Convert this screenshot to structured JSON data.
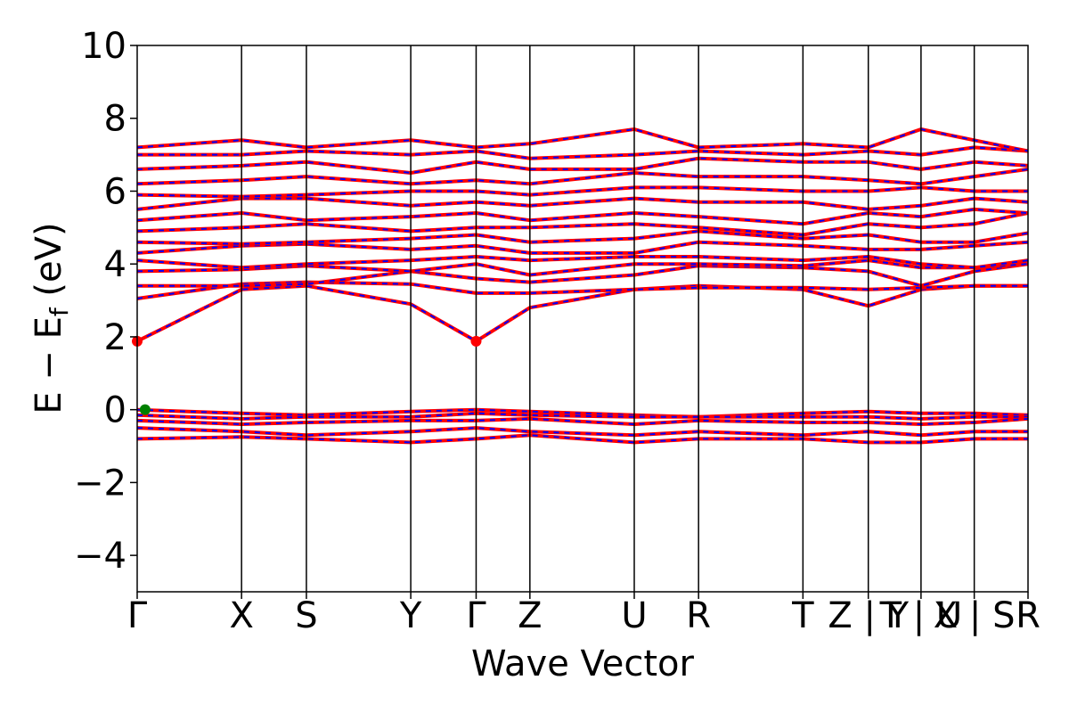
{
  "chart_data": {
    "type": "line",
    "title": "",
    "xlabel": "Wave Vector",
    "ylabel": "E − E_f (eV)",
    "ylabel_main": "E − E",
    "ylabel_sub": "f",
    "ylabel_tail": " (eV)",
    "ylim": [
      -5,
      10
    ],
    "yticks": [
      -4,
      -2,
      0,
      2,
      4,
      6,
      8,
      10
    ],
    "grid": false,
    "legend": "none",
    "kpoint_labels": [
      "Γ",
      "X",
      "S",
      "Y",
      "Γ",
      "Z",
      "U",
      "R",
      "T",
      "Z | Y",
      "T | U",
      "X | S",
      "R"
    ],
    "kpoint_positions": [
      0,
      1.98,
      3.21,
      5.19,
      6.43,
      7.45,
      9.43,
      10.65,
      12.63,
      13.87,
      14.87,
      15.88,
      16.9
    ],
    "band_colors": {
      "spin_up": "#ff0000",
      "spin_down": "#0000ff"
    },
    "markers": [
      {
        "label": "CBM",
        "x": 0,
        "y": 1.88,
        "color": "#ff0000"
      },
      {
        "label": "CBM",
        "x": 6.43,
        "y": 1.88,
        "color": "#ff0000"
      },
      {
        "label": "VBM",
        "x": 0.15,
        "y": 0.0,
        "color": "#008000"
      }
    ],
    "series": [
      {
        "x": [
          0,
          1.98,
          3.21,
          5.19,
          6.43,
          7.45,
          9.43,
          10.65,
          12.63,
          13.87,
          14.87,
          15.88,
          16.9
        ],
        "y": [
          1.88,
          3.3,
          3.4,
          2.9,
          1.88,
          2.8,
          3.3,
          3.4,
          3.3,
          2.85,
          3.3,
          3.4,
          3.4
        ]
      },
      {
        "x": [
          0,
          1.98,
          3.21,
          5.19,
          6.43,
          7.45,
          9.43,
          10.65,
          12.63,
          13.87,
          14.87,
          15.88,
          16.9
        ],
        "y": [
          3.05,
          3.45,
          3.5,
          3.45,
          3.2,
          3.2,
          3.3,
          3.35,
          3.35,
          3.3,
          3.35,
          3.4,
          3.4
        ]
      },
      {
        "x": [
          0,
          1.98,
          3.21,
          5.19,
          6.43,
          7.45,
          9.43,
          10.65,
          12.63,
          13.87,
          14.87,
          15.88,
          16.9
        ],
        "y": [
          3.4,
          3.4,
          3.45,
          3.8,
          3.6,
          3.5,
          3.7,
          3.95,
          3.9,
          3.8,
          3.4,
          3.8,
          4.0
        ]
      },
      {
        "x": [
          0,
          1.98,
          3.21,
          5.19,
          6.43,
          7.45,
          9.43,
          10.65,
          12.63,
          13.87,
          14.87,
          15.88,
          16.9
        ],
        "y": [
          3.8,
          3.85,
          3.95,
          3.8,
          4.0,
          3.7,
          4.0,
          4.0,
          3.95,
          4.1,
          3.9,
          3.9,
          4.0
        ]
      },
      {
        "x": [
          0,
          1.98,
          3.21,
          5.19,
          6.43,
          7.45,
          9.43,
          10.65,
          12.63,
          13.87,
          14.87,
          15.88,
          16.9
        ],
        "y": [
          4.1,
          3.9,
          4.0,
          4.1,
          4.2,
          4.1,
          4.2,
          4.2,
          4.1,
          4.2,
          4.0,
          3.9,
          4.1
        ]
      },
      {
        "x": [
          0,
          1.98,
          3.21,
          5.19,
          6.43,
          7.45,
          9.43,
          10.65,
          12.63,
          13.87,
          14.87,
          15.88,
          16.9
        ],
        "y": [
          4.3,
          4.5,
          4.55,
          4.4,
          4.5,
          4.3,
          4.3,
          4.6,
          4.5,
          4.4,
          4.4,
          4.5,
          4.6
        ]
      },
      {
        "x": [
          0,
          1.98,
          3.21,
          5.19,
          6.43,
          7.45,
          9.43,
          10.65,
          12.63,
          13.87,
          14.87,
          15.88,
          16.9
        ],
        "y": [
          4.6,
          4.55,
          4.6,
          4.7,
          4.8,
          4.6,
          4.7,
          4.9,
          4.7,
          4.8,
          4.6,
          4.6,
          4.85
        ]
      },
      {
        "x": [
          0,
          1.98,
          3.21,
          5.19,
          6.43,
          7.45,
          9.43,
          10.65,
          12.63,
          13.87,
          14.87,
          15.88,
          16.9
        ],
        "y": [
          4.9,
          5.0,
          5.1,
          4.9,
          5.0,
          5.0,
          5.1,
          5.0,
          4.8,
          5.1,
          5.0,
          5.1,
          5.4
        ]
      },
      {
        "x": [
          0,
          1.98,
          3.21,
          5.19,
          6.43,
          7.45,
          9.43,
          10.65,
          12.63,
          13.87,
          14.87,
          15.88,
          16.9
        ],
        "y": [
          5.2,
          5.4,
          5.2,
          5.3,
          5.4,
          5.2,
          5.4,
          5.3,
          5.1,
          5.4,
          5.3,
          5.5,
          5.4
        ]
      },
      {
        "x": [
          0,
          1.98,
          3.21,
          5.19,
          6.43,
          7.45,
          9.43,
          10.65,
          12.63,
          13.87,
          14.87,
          15.88,
          16.9
        ],
        "y": [
          5.5,
          5.8,
          5.8,
          5.6,
          5.7,
          5.6,
          5.8,
          5.7,
          5.7,
          5.5,
          5.6,
          5.8,
          5.7
        ]
      },
      {
        "x": [
          0,
          1.98,
          3.21,
          5.19,
          6.43,
          7.45,
          9.43,
          10.65,
          12.63,
          13.87,
          14.87,
          15.88,
          16.9
        ],
        "y": [
          5.9,
          5.85,
          5.9,
          6.0,
          6.0,
          5.9,
          6.1,
          6.1,
          6.0,
          6.0,
          6.1,
          6.0,
          6.0
        ]
      },
      {
        "x": [
          0,
          1.98,
          3.21,
          5.19,
          6.43,
          7.45,
          9.43,
          10.65,
          12.63,
          13.87,
          14.87,
          15.88,
          16.9
        ],
        "y": [
          6.2,
          6.3,
          6.4,
          6.2,
          6.3,
          6.2,
          6.5,
          6.4,
          6.4,
          6.3,
          6.2,
          6.4,
          6.6
        ]
      },
      {
        "x": [
          0,
          1.98,
          3.21,
          5.19,
          6.43,
          7.45,
          9.43,
          10.65,
          12.63,
          13.87,
          14.87,
          15.88,
          16.9
        ],
        "y": [
          6.6,
          6.7,
          6.8,
          6.5,
          6.8,
          6.6,
          6.6,
          6.9,
          6.8,
          6.8,
          6.6,
          6.8,
          6.7
        ]
      },
      {
        "x": [
          0,
          1.98,
          3.21,
          5.19,
          6.43,
          7.45,
          9.43,
          10.65,
          12.63,
          13.87,
          14.87,
          15.88,
          16.9
        ],
        "y": [
          7.0,
          7.0,
          7.1,
          7.0,
          7.1,
          6.9,
          7.0,
          7.1,
          7.0,
          7.1,
          7.0,
          7.2,
          7.1
        ]
      },
      {
        "x": [
          0,
          1.98,
          3.21,
          5.19,
          6.43,
          7.45,
          9.43,
          10.65,
          12.63,
          13.87,
          14.87,
          15.88,
          16.9
        ],
        "y": [
          7.2,
          7.4,
          7.2,
          7.4,
          7.2,
          7.3,
          7.7,
          7.2,
          7.3,
          7.2,
          7.7,
          7.4,
          7.1
        ]
      },
      {
        "x": [
          0,
          1.98,
          3.21,
          5.19,
          6.43,
          7.45,
          9.43,
          10.65,
          12.63,
          13.87,
          14.87,
          15.88,
          16.9
        ],
        "y": [
          0.0,
          -0.1,
          -0.15,
          -0.05,
          0.0,
          -0.05,
          -0.15,
          -0.2,
          -0.1,
          -0.05,
          -0.1,
          -0.1,
          -0.15
        ]
      },
      {
        "x": [
          0,
          1.98,
          3.21,
          5.19,
          6.43,
          7.45,
          9.43,
          10.65,
          12.63,
          13.87,
          14.87,
          15.88,
          16.9
        ],
        "y": [
          -0.15,
          -0.25,
          -0.2,
          -0.2,
          -0.1,
          -0.15,
          -0.2,
          -0.2,
          -0.2,
          -0.2,
          -0.25,
          -0.2,
          -0.2
        ]
      },
      {
        "x": [
          0,
          1.98,
          3.21,
          5.19,
          6.43,
          7.45,
          9.43,
          10.65,
          12.63,
          13.87,
          14.87,
          15.88,
          16.9
        ],
        "y": [
          -0.3,
          -0.4,
          -0.35,
          -0.3,
          -0.3,
          -0.25,
          -0.4,
          -0.3,
          -0.35,
          -0.35,
          -0.4,
          -0.35,
          -0.25
        ]
      },
      {
        "x": [
          0,
          1.98,
          3.21,
          5.19,
          6.43,
          7.45,
          9.43,
          10.65,
          12.63,
          13.87,
          14.87,
          15.88,
          16.9
        ],
        "y": [
          -0.5,
          -0.6,
          -0.7,
          -0.6,
          -0.5,
          -0.6,
          -0.7,
          -0.6,
          -0.7,
          -0.6,
          -0.7,
          -0.6,
          -0.6
        ]
      },
      {
        "x": [
          0,
          1.98,
          3.21,
          5.19,
          6.43,
          7.45,
          9.43,
          10.65,
          12.63,
          13.87,
          14.87,
          15.88,
          16.9
        ],
        "y": [
          -0.8,
          -0.75,
          -0.8,
          -0.9,
          -0.8,
          -0.7,
          -0.9,
          -0.8,
          -0.8,
          -0.9,
          -0.9,
          -0.8,
          -0.8
        ]
      }
    ]
  }
}
